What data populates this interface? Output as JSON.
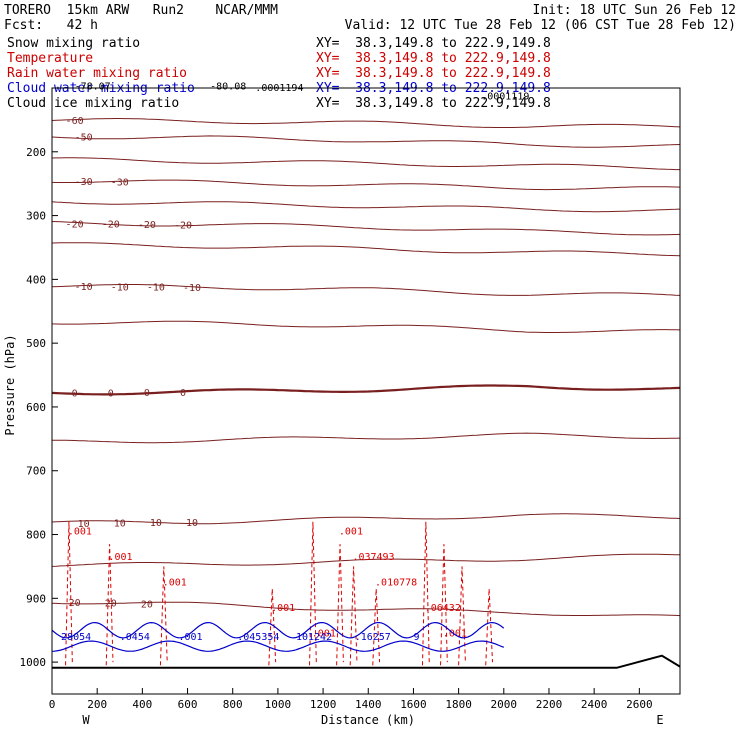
{
  "header": {
    "line1_left": "TORERO  15km ARW   Run2    NCAR/MMM",
    "line1_right": "Init: 18 UTC Sun 26 Feb 12",
    "line2_left": "Fcst:   42 h",
    "line2_right": "Valid: 12 UTC Tue 28 Feb 12 (06 CST Tue 28 Feb 12)"
  },
  "legend": [
    {
      "name": "Snow mixing ratio",
      "xy": "XY=  38.3,149.8 to 222.9,149.8",
      "color": "#000000"
    },
    {
      "name": "Temperature",
      "xy": "XY=  38.3,149.8 to 222.9,149.8",
      "color": "#cc0000"
    },
    {
      "name": "Rain water mixing ratio",
      "xy": "XY=  38.3,149.8 to 222.9,149.8",
      "color": "#cc0000"
    },
    {
      "name": "Cloud water mixing ratio",
      "xy": "XY=  38.3,149.8 to 222.9,149.8",
      "color": "#0000cc"
    },
    {
      "name": "Cloud ice mixing ratio",
      "xy": "XY=  38.3,149.8 to 222.9,149.8",
      "color": "#000000"
    }
  ],
  "colors": {
    "temperature": "#7a1f1f",
    "rain": "#dd0000",
    "cloud_water": "#0000cc",
    "terrain": "#000000"
  },
  "chart_data": {
    "type": "line",
    "xlabel": "Distance (km)",
    "ylabel": "Pressure (hPa)",
    "xlim": [
      0,
      2780
    ],
    "ylim": [
      1050,
      100
    ],
    "x_ticks": [
      0,
      200,
      400,
      600,
      800,
      1000,
      1200,
      1400,
      1600,
      1800,
      2000,
      2200,
      2400,
      2600
    ],
    "y_ticks": [
      200,
      300,
      400,
      500,
      600,
      700,
      800,
      900,
      1000
    ],
    "x_end_labels": {
      "left": "W",
      "right": "E"
    },
    "temperature_contours": [
      {
        "level": -60,
        "labels": [
          "-60"
        ],
        "p": [
          150,
          152,
          155,
          160,
          160
        ]
      },
      {
        "level": -50,
        "labels": [
          "-50"
        ],
        "p": [
          176,
          178,
          182,
          189,
          191
        ]
      },
      {
        "level": -40,
        "labels": [],
        "p": [
          212,
          215,
          218,
          222,
          225
        ]
      },
      {
        "level": -30,
        "labels": [
          "-30",
          "-30"
        ],
        "p": [
          245,
          248,
          252,
          256,
          258
        ]
      },
      {
        "level": -25,
        "labels": [],
        "p": [
          278,
          281,
          285,
          290,
          292
        ]
      },
      {
        "level": -20,
        "labels": [
          "-20",
          "-20",
          "-20",
          "-20"
        ],
        "p": [
          312,
          314,
          318,
          325,
          328
        ]
      },
      {
        "level": -15,
        "labels": [],
        "p": [
          345,
          348,
          352,
          358,
          360
        ]
      },
      {
        "level": -10,
        "labels": [
          "-10",
          "-10",
          "-10",
          "-10"
        ],
        "p": [
          410,
          412,
          416,
          423,
          425
        ]
      },
      {
        "level": -5,
        "labels": [],
        "p": [
          467,
          469,
          473,
          480,
          482
        ]
      },
      {
        "level": 0,
        "labels": [
          "0",
          "0",
          "0",
          "0"
        ],
        "p": [
          578,
          576,
          573,
          568,
          572
        ]
      },
      {
        "level": 5,
        "labels": [],
        "p": [
          655,
          652,
          648,
          644,
          647
        ]
      },
      {
        "level": 10,
        "labels": [
          "10",
          "10",
          "10",
          "10"
        ],
        "p": [
          782,
          780,
          775,
          770,
          772
        ]
      },
      {
        "level": 15,
        "labels": [],
        "p": [
          848,
          846,
          842,
          838,
          832
        ]
      },
      {
        "level": 20,
        "labels": [
          "20",
          "20",
          "20"
        ],
        "p": [
          905,
          910,
          918,
          922,
          930
        ]
      }
    ],
    "temperature_x": [
      0,
      700,
      1400,
      2100,
      2780
    ],
    "rain_labels": [
      ".001",
      ".001",
      ".001",
      ".001",
      ".001",
      ".001",
      ".037493",
      ".010778",
      ".06432",
      ".001"
    ],
    "cloud_water_labels": [
      "28054",
      ".0454",
      ".001",
      ".045354",
      "101242",
      ".16257",
      "9"
    ],
    "ice_labels": [
      ".0001194",
      ".0001119",
      "-78.07",
      "-80.08"
    ],
    "terrain_p": [
      1009,
      1009,
      1009,
      1009,
      1009,
      1009,
      990,
      1007
    ],
    "terrain_x": [
      0,
      500,
      1000,
      1500,
      2000,
      2500,
      2700,
      2780
    ]
  }
}
